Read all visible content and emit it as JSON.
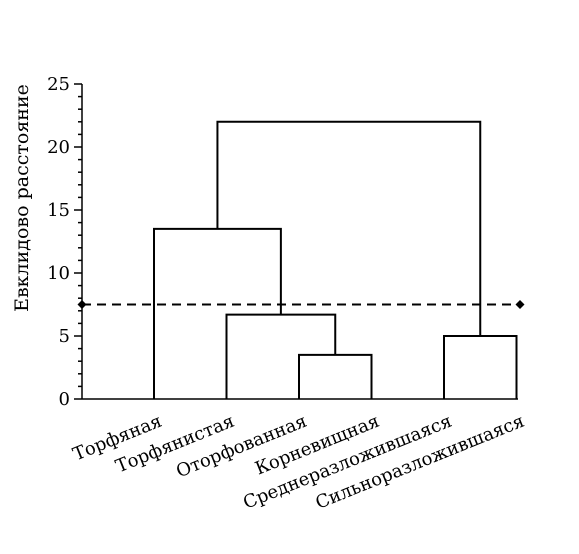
{
  "chart_data": {
    "type": "dendrogram",
    "ylabel": "Евклидово расстояние",
    "xlabel": "",
    "title": "",
    "ylim": [
      0,
      25
    ],
    "y_ticks": [
      0,
      5,
      10,
      15,
      20,
      25
    ],
    "y_minor_step": 1,
    "grid": false,
    "leaves": [
      "Торфяная",
      "Торфянистая",
      "Оторфованная",
      "Корневищная",
      "Среднеразложившаяся",
      "Сильноразложившаяся"
    ],
    "merges": [
      {
        "left": "leaf:3",
        "right": "leaf:4",
        "height": 3.5
      },
      {
        "left": "leaf:0",
        "right": "leaf:1",
        "height": 5.0
      },
      {
        "left": "leaf:2",
        "right": "merge:0",
        "height": 6.7
      },
      {
        "left": "leaf:1_dummy",
        "right": "merge:2",
        "height": 13.5
      },
      {
        "left": "merge:3",
        "right": "merge:1",
        "height": 22.0
      }
    ],
    "links": [
      {
        "left_x": 4,
        "left_bottom": 0,
        "right_x": 5,
        "right_bottom": 0,
        "height": 3.5
      },
      {
        "left_x": 3,
        "left_bottom": 0,
        "right_x": 4.5,
        "right_bottom": 3.5,
        "height": 6.7
      },
      {
        "left_x": 2,
        "left_bottom": 0,
        "right_x": 3.75,
        "right_bottom": 6.7,
        "height": 13.5
      },
      {
        "left_x": 6,
        "left_bottom": 0,
        "right_x": 7,
        "right_bottom": 0,
        "height": 5.0
      },
      {
        "left_x": 2.875,
        "left_bottom": 13.5,
        "right_x": 6.5,
        "right_bottom": 5.0,
        "height": 22.0
      }
    ],
    "cut_threshold": 7.5
  }
}
